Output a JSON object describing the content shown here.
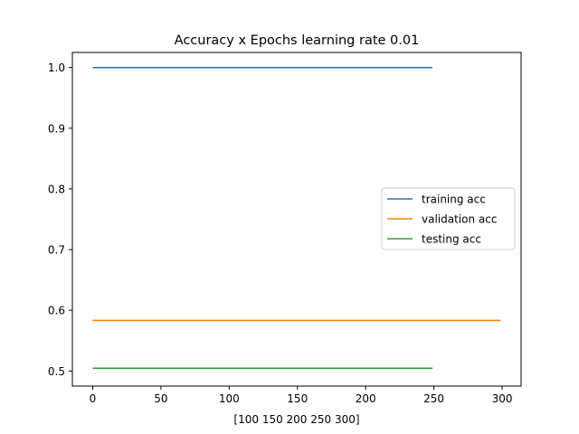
{
  "chart_data": {
    "type": "line",
    "title": "Accuracy x Epochs learning rate 0.01",
    "xlabel": "[100 150 200 250 300]",
    "ylabel": "",
    "xlim": [
      -14.9,
      313.9
    ],
    "ylim": [
      0.4752,
      1.0248
    ],
    "xticks": [
      0,
      50,
      100,
      150,
      200,
      250,
      300
    ],
    "yticks": [
      0.5,
      0.6,
      0.7,
      0.8,
      0.9,
      1.0
    ],
    "ytick_labels": [
      "0.5",
      "0.6",
      "0.7",
      "0.8",
      "0.9",
      "1.0"
    ],
    "grid": false,
    "legend_position": "center-right",
    "series": [
      {
        "name": "training acc",
        "color": "#1f77b4",
        "x": [
          0,
          249
        ],
        "y": [
          1.0,
          1.0
        ]
      },
      {
        "name": "validation acc",
        "color": "#ff7f0e",
        "x": [
          0,
          299
        ],
        "y": [
          0.5833,
          0.5833
        ]
      },
      {
        "name": "testing acc",
        "color": "#2ca02c",
        "x": [
          0,
          249
        ],
        "y": [
          0.5046,
          0.5046
        ]
      }
    ]
  }
}
